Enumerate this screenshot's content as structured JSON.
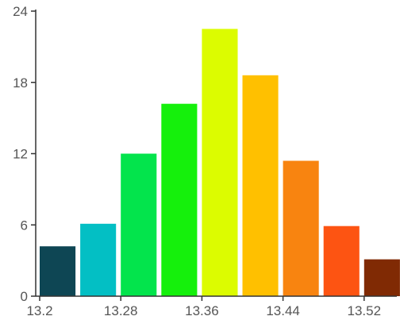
{
  "chart_data": {
    "type": "bar",
    "title": "",
    "xlabel": "",
    "ylabel": "",
    "x_ticks": [
      "13.2",
      "13.28",
      "13.36",
      "13.44",
      "13.52"
    ],
    "y_ticks": [
      "0",
      "6",
      "12",
      "18",
      "24"
    ],
    "ylim": [
      0,
      24
    ],
    "grid": false,
    "bins": [
      {
        "x0": 13.2,
        "x1": 13.24,
        "value": 4.2,
        "color": "#0e4654"
      },
      {
        "x0": 13.24,
        "x1": 13.28,
        "value": 6.1,
        "color": "#03bfc4"
      },
      {
        "x0": 13.28,
        "x1": 13.32,
        "value": 12.0,
        "color": "#03e44c"
      },
      {
        "x0": 13.32,
        "x1": 13.36,
        "value": 16.2,
        "color": "#15f00c"
      },
      {
        "x0": 13.36,
        "x1": 13.4,
        "value": 22.5,
        "color": "#dcfc00"
      },
      {
        "x0": 13.4,
        "x1": 13.44,
        "value": 18.6,
        "color": "#ffc000"
      },
      {
        "x0": 13.44,
        "x1": 13.48,
        "value": 11.4,
        "color": "#f88410"
      },
      {
        "x0": 13.48,
        "x1": 13.52,
        "value": 5.9,
        "color": "#fd5412"
      },
      {
        "x0": 13.52,
        "x1": 13.56,
        "value": 3.1,
        "color": "#802a04"
      }
    ]
  }
}
